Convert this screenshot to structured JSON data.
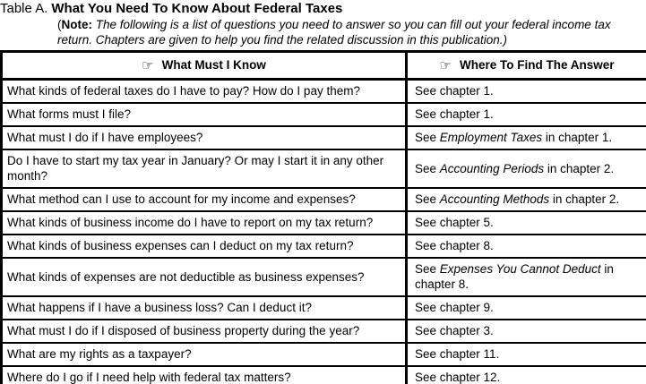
{
  "title": {
    "prefix": "Table A.",
    "main": "What You Need To Know About Federal Taxes",
    "note_paren": "(",
    "note_label": "Note:",
    "note_text": "The following is a list of questions you need to answer so you can fill out your federal income tax return. Chapters are given to help you find the related discussion in this publication.)"
  },
  "table": {
    "icon_glyph": "☞",
    "icon_name": "pointing-hand-icon",
    "headers": [
      {
        "label": "What Must I Know"
      },
      {
        "label": "Where To Find The Answer"
      }
    ],
    "rows": [
      {
        "question": "What kinds of federal taxes do I have to pay? How do I pay them?",
        "answer": [
          {
            "text": "See chapter 1."
          }
        ]
      },
      {
        "question": "What forms must I file?",
        "answer": [
          {
            "text": "See chapter 1."
          }
        ]
      },
      {
        "question": "What must I do if I have employees?",
        "answer": [
          {
            "text": "See "
          },
          {
            "text": "Employment Taxes",
            "italic": true
          },
          {
            "text": " in chapter 1."
          }
        ]
      },
      {
        "question": "Do I have to start my tax year in January? Or may I start it in any other month?",
        "answer": [
          {
            "text": "See "
          },
          {
            "text": "Accounting Periods",
            "italic": true
          },
          {
            "text": " in chapter 2."
          }
        ]
      },
      {
        "question": "What method can I use to account for my income and expenses?",
        "answer": [
          {
            "text": "See "
          },
          {
            "text": "Accounting Methods",
            "italic": true
          },
          {
            "text": " in chapter 2."
          }
        ]
      },
      {
        "question": "What kinds of business income do I have to report on my tax return?",
        "answer": [
          {
            "text": "See chapter 5."
          }
        ]
      },
      {
        "question": "What kinds of business expenses can I deduct on my tax return?",
        "answer": [
          {
            "text": "See chapter 8."
          }
        ]
      },
      {
        "question": "What kinds of expenses are not deductible as business expenses?",
        "answer": [
          {
            "text": "See "
          },
          {
            "text": "Expenses You Cannot Deduct",
            "italic": true
          },
          {
            "text": " in chapter 8."
          }
        ]
      },
      {
        "question": "What happens if I have a business loss? Can I deduct it?",
        "answer": [
          {
            "text": "See chapter 9."
          }
        ]
      },
      {
        "question": "What must I do if I disposed of business property during the year?",
        "answer": [
          {
            "text": "See chapter 3."
          }
        ]
      },
      {
        "question": "What are my rights as a taxpayer?",
        "answer": [
          {
            "text": "See chapter 11."
          }
        ]
      },
      {
        "question": "Where do I go if I need help with federal tax matters?",
        "answer": [
          {
            "text": "See chapter 12."
          }
        ]
      }
    ]
  },
  "colors": {
    "border": "#000000",
    "background": "#ffffff",
    "text": "#000000"
  }
}
